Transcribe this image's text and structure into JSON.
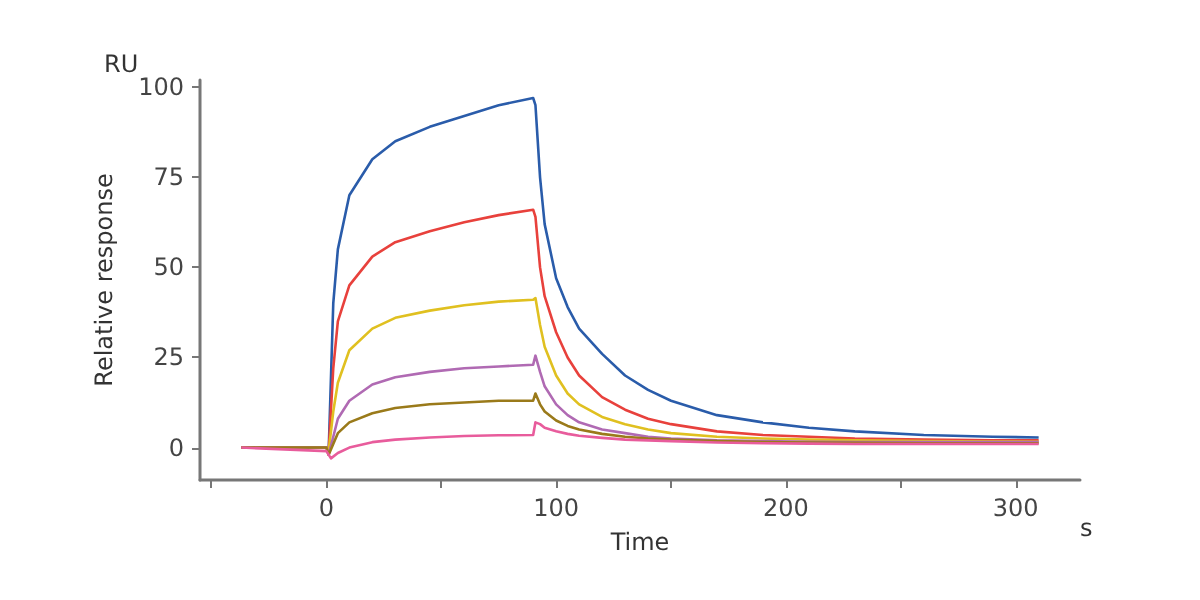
{
  "chart_data": {
    "type": "line",
    "xlabel": "Time",
    "ylabel": "Relative response",
    "annotations": [
      "RU",
      "s"
    ],
    "xlim": [
      -55,
      328
    ],
    "xticks": [
      {
        "value": -50,
        "label": null
      },
      0,
      {
        "value": 50,
        "label": null
      },
      100,
      {
        "value": 150,
        "label": null
      },
      200,
      {
        "value": 250,
        "label": null
      },
      300
    ],
    "ylim": [
      -9,
      102
    ],
    "yticks": [
      0,
      25,
      50,
      75,
      100
    ],
    "series": [
      {
        "color": "#2a5caa",
        "x": [
          -37,
          0,
          1,
          3,
          5,
          10,
          20,
          30,
          45,
          60,
          75,
          90,
          91,
          93,
          95,
          100,
          105,
          110,
          120,
          130,
          140,
          150,
          170,
          190,
          210,
          230,
          260,
          290,
          310
        ],
        "values": [
          0,
          0,
          -1,
          40,
          55,
          70,
          80,
          85,
          89,
          92,
          95,
          97,
          95,
          75,
          62,
          47,
          39,
          33,
          26,
          20,
          16,
          13,
          9,
          7,
          5.5,
          4.5,
          3.5,
          3,
          2.8
        ]
      },
      {
        "color": "#e8413c",
        "x": [
          -37,
          0,
          1,
          3,
          5,
          10,
          20,
          30,
          45,
          60,
          75,
          90,
          91,
          93,
          95,
          100,
          105,
          110,
          120,
          130,
          140,
          150,
          170,
          190,
          210,
          230,
          260,
          290,
          310
        ],
        "values": [
          0,
          0,
          -1,
          22,
          35,
          45,
          53,
          57,
          60,
          62.5,
          64.5,
          66,
          64,
          50,
          42,
          32,
          25,
          20,
          14,
          10.5,
          8,
          6.5,
          4.5,
          3.5,
          3,
          2.5,
          2.2,
          2,
          2
        ]
      },
      {
        "color": "#e0c020",
        "x": [
          -37,
          0,
          1,
          3,
          5,
          10,
          20,
          30,
          45,
          60,
          75,
          90,
          91,
          93,
          95,
          100,
          105,
          110,
          120,
          130,
          140,
          150,
          170,
          190,
          210,
          230,
          260,
          290,
          310
        ],
        "values": [
          0,
          0,
          -1,
          10,
          18,
          27,
          33,
          36,
          38,
          39.5,
          40.5,
          41,
          41.5,
          34,
          28,
          20,
          15,
          12,
          8.5,
          6.5,
          5,
          4,
          3,
          2.5,
          2.2,
          2,
          1.8,
          1.7,
          1.6
        ]
      },
      {
        "color": "#b06ab3",
        "x": [
          -37,
          0,
          1,
          3,
          5,
          10,
          20,
          30,
          45,
          60,
          75,
          90,
          91,
          93,
          95,
          100,
          105,
          110,
          120,
          130,
          140,
          150,
          170,
          190,
          210,
          230,
          260,
          290,
          310
        ],
        "values": [
          0,
          0,
          -2,
          3,
          8,
          13,
          17.5,
          19.5,
          21,
          22,
          22.5,
          23,
          25.5,
          21,
          17,
          12,
          9,
          7,
          5,
          4,
          3,
          2.5,
          2,
          1.8,
          1.6,
          1.5,
          1.5,
          1.5,
          1.5
        ]
      },
      {
        "color": "#9a7a1a",
        "x": [
          -37,
          0,
          1,
          3,
          5,
          10,
          20,
          30,
          45,
          60,
          75,
          90,
          91,
          93,
          95,
          100,
          105,
          110,
          120,
          130,
          140,
          150,
          170,
          190,
          210,
          230,
          260,
          290,
          310
        ],
        "values": [
          0,
          0,
          -2,
          1,
          4,
          7,
          9.5,
          11,
          12,
          12.5,
          13,
          13,
          15,
          12,
          10,
          7.5,
          6,
          5,
          3.8,
          3,
          2.5,
          2.2,
          1.8,
          1.5,
          1.4,
          1.3,
          1.2,
          1.2,
          1.2
        ]
      },
      {
        "color": "#e85c9c",
        "x": [
          -37,
          0,
          2,
          5,
          10,
          20,
          30,
          45,
          60,
          75,
          90,
          91,
          93,
          95,
          100,
          105,
          110,
          120,
          130,
          140,
          150,
          170,
          190,
          210,
          230,
          260,
          290,
          310
        ],
        "values": [
          0,
          -1,
          -3,
          -1.5,
          0,
          1.5,
          2.2,
          2.8,
          3.2,
          3.4,
          3.5,
          7,
          6.5,
          5.5,
          4.5,
          3.8,
          3.3,
          2.7,
          2.2,
          2,
          1.8,
          1.4,
          1.2,
          1.1,
          1,
          1,
          1,
          1
        ]
      }
    ]
  }
}
